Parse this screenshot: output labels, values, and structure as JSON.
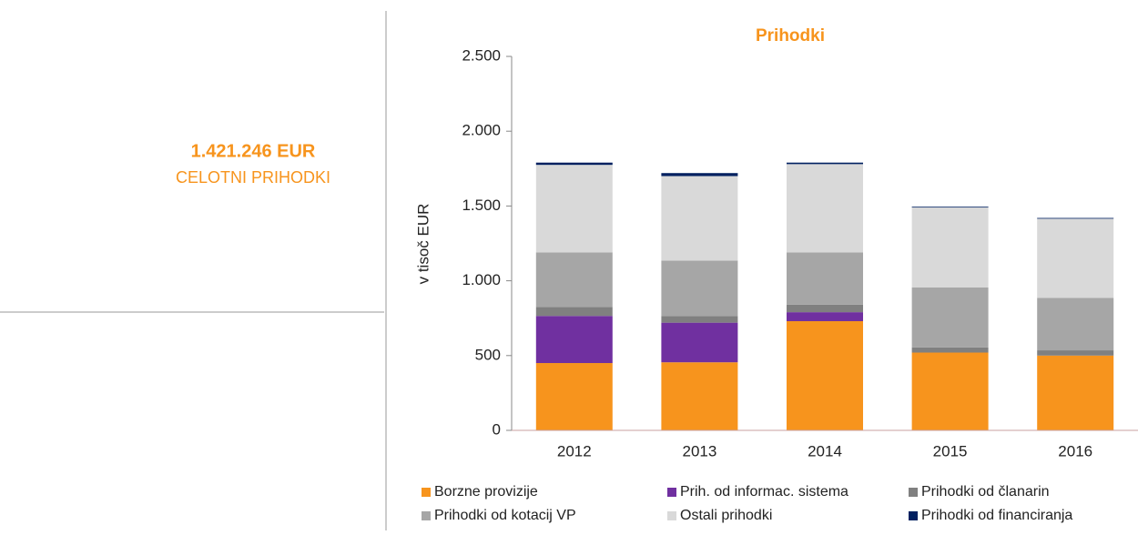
{
  "summary": {
    "amount": "1.421.246 EUR",
    "label": "CELOTNI PRIHODKI"
  },
  "chart_data": {
    "type": "stacked_bar",
    "title": "Prihodki",
    "y_label": "v tisoč EUR",
    "categories": [
      "2012",
      "2013",
      "2014",
      "2015",
      "2016"
    ],
    "series": [
      {
        "name": "Borzne provizije",
        "color": "#f7941d",
        "values": [
          450,
          455,
          730,
          520,
          500
        ]
      },
      {
        "name": "Prih. od informac. sistema",
        "color": "#7030a0",
        "values": [
          315,
          265,
          60,
          0,
          0
        ]
      },
      {
        "name": "Prihodki od članarin",
        "color": "#808080",
        "values": [
          60,
          45,
          50,
          35,
          35
        ]
      },
      {
        "name": "Prihodki od kotacij VP",
        "color": "#a6a6a6",
        "values": [
          365,
          370,
          350,
          400,
          350
        ]
      },
      {
        "name": "Ostali prihodki",
        "color": "#d9d9d9",
        "values": [
          585,
          565,
          590,
          535,
          530
        ]
      },
      {
        "name": "Prihodki od financiranja",
        "color": "#002060",
        "values": [
          15,
          20,
          10,
          5,
          5
        ]
      }
    ],
    "ylim": [
      0,
      2500
    ],
    "yticks": [
      0,
      {
        "value": 500,
        "label": "500"
      },
      {
        "value": 1000,
        "label": "1.000"
      },
      {
        "value": 1500,
        "label": "1.500"
      },
      {
        "value": 2000,
        "label": "2.000"
      },
      {
        "value": 2500,
        "label": "2.500"
      }
    ]
  }
}
